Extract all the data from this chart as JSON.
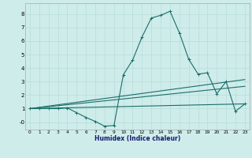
{
  "title": "",
  "xlabel": "Humidex (Indice chaleur)",
  "bg_color": "#ceecea",
  "line_color": "#1a6e6a",
  "grid_color": "#b8ddd8",
  "xlim": [
    -0.5,
    23.5
  ],
  "ylim": [
    -0.55,
    8.8
  ],
  "yticks": [
    0,
    1,
    2,
    3,
    4,
    5,
    6,
    7,
    8
  ],
  "ytick_labels": [
    "-0",
    "1",
    "2",
    "3",
    "4",
    "5",
    "6",
    "7",
    "8"
  ],
  "xticks": [
    0,
    1,
    2,
    3,
    4,
    5,
    6,
    7,
    8,
    9,
    10,
    11,
    12,
    13,
    14,
    15,
    16,
    17,
    18,
    19,
    20,
    21,
    22,
    23
  ],
  "series1_x": [
    0,
    1,
    2,
    3,
    4,
    5,
    6,
    7,
    8,
    9,
    10,
    11,
    12,
    13,
    14,
    15,
    16,
    17,
    18,
    19,
    20,
    21,
    22,
    23
  ],
  "series1_y": [
    1.0,
    1.0,
    1.0,
    1.0,
    1.05,
    0.7,
    0.35,
    0.05,
    -0.3,
    -0.25,
    3.5,
    4.6,
    6.3,
    7.7,
    7.9,
    8.2,
    6.6,
    4.65,
    3.55,
    3.65,
    2.1,
    3.0,
    0.8,
    1.35
  ],
  "series2_x": [
    0,
    23
  ],
  "series2_y": [
    1.0,
    1.35
  ],
  "series3_x": [
    0,
    23
  ],
  "series3_y": [
    1.0,
    2.65
  ],
  "series4_x": [
    0,
    23
  ],
  "series4_y": [
    1.0,
    3.15
  ]
}
